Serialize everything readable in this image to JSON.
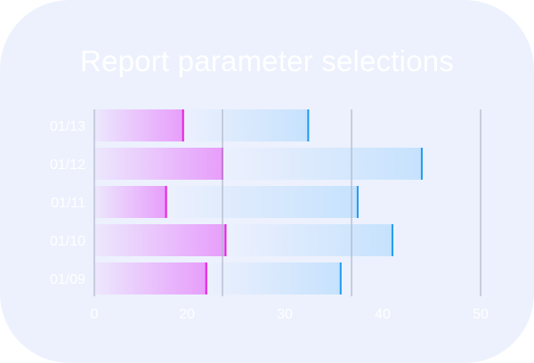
{
  "chart_data": {
    "type": "bar",
    "orientation": "horizontal",
    "stacked": true,
    "title": "Report parameter selections",
    "categories": [
      "01/13",
      "01/12",
      "01/11",
      "01/10",
      "01/09"
    ],
    "series": [
      {
        "values": [
          11.6,
          16.7,
          9.4,
          17.1,
          14.6
        ]
      },
      {
        "values": [
          16.2,
          25.8,
          24.8,
          21.6,
          17.4
        ]
      }
    ],
    "xlim": [
      0,
      50
    ],
    "xticks": [
      0,
      20,
      30,
      40,
      50
    ],
    "grid": true,
    "colors": {
      "series1_start": "#ece8fd",
      "series1_end": "#e79dfb",
      "series1_edge": "#e81fe0",
      "series2_start": "#ecf0fd",
      "series2_end": "#c6e2fd",
      "series2_edge": "#1e9cf0",
      "grid": "#aeb6c8",
      "text": "#ffffff"
    }
  }
}
